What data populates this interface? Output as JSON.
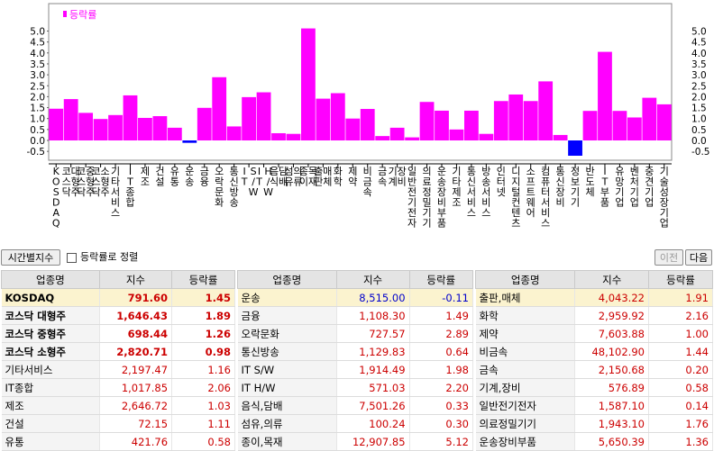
{
  "chart_data": {
    "type": "bar",
    "legend": "등락률",
    "legend_position": "top-left",
    "y_ticks": [
      "5.0",
      "4.5",
      "4.0",
      "3.5",
      "3.0",
      "2.5",
      "2.0",
      "1.5",
      "1.0",
      "0.5",
      "0.0",
      "-0.5"
    ],
    "ylim": [
      -0.8,
      5.3
    ],
    "categories": [
      "KOSDAQ",
      "코스닥 대형주",
      "코스닥 중형주",
      "코스닥 소형주",
      "기타서비스",
      "IT종합",
      "제조",
      "건설",
      "유통",
      "운송",
      "금융",
      "오락문화",
      "통신방송",
      "IT S/W",
      "IT H/W",
      "음식,담배",
      "섬유,의류",
      "종이,목재",
      "출판,매체",
      "화학",
      "제약",
      "비금속",
      "금속",
      "기계,장비",
      "일반전기전자",
      "의료정밀기기",
      "운송장비부품",
      "기타제조",
      "통신서비스",
      "방송서비스",
      "인터넷",
      "디지털컨텐츠",
      "소프트웨어",
      "컴퓨터서비스",
      "통신장비",
      "정보기기",
      "반도체",
      "IT부품",
      "유망기업",
      "벤처기업",
      "중견기업",
      "기술성장기업"
    ],
    "values": [
      1.45,
      1.89,
      1.26,
      0.98,
      1.16,
      2.06,
      1.03,
      1.11,
      0.58,
      -0.11,
      1.49,
      2.89,
      0.64,
      1.98,
      2.2,
      0.33,
      0.3,
      5.12,
      1.91,
      2.16,
      1.0,
      1.44,
      0.2,
      0.58,
      0.14,
      1.76,
      1.36,
      0.5,
      1.36,
      0.3,
      1.8,
      2.1,
      1.8,
      2.7,
      0.25,
      -0.7,
      1.35,
      4.05,
      1.35,
      1.05,
      1.95,
      1.65
    ],
    "colors": {
      "positive": "#ff00ff",
      "negative": "#0000ff"
    }
  },
  "toolbar": {
    "period_label": "시간별지수",
    "sort_label": "등락률로 정렬",
    "prev_label": "이전",
    "next_label": "다음"
  },
  "table": {
    "headers": [
      "업종명",
      "지수",
      "등락률"
    ],
    "col1": [
      {
        "name": "KOSDAQ",
        "index": "791.60",
        "rate": "1.45",
        "hl": true,
        "bold": true,
        "neg": false
      },
      {
        "name": "코스닥 대형주",
        "index": "1,646.43",
        "rate": "1.89",
        "hl": false,
        "bold": true,
        "neg": false
      },
      {
        "name": "코스닥 중형주",
        "index": "698.44",
        "rate": "1.26",
        "hl": false,
        "bold": true,
        "neg": false
      },
      {
        "name": "코스닥 소형주",
        "index": "2,820.71",
        "rate": "0.98",
        "hl": false,
        "bold": true,
        "neg": false
      },
      {
        "name": "기타서비스",
        "index": "2,197.47",
        "rate": "1.16",
        "hl": false,
        "bold": false,
        "neg": false
      },
      {
        "name": "IT종합",
        "index": "1,017.85",
        "rate": "2.06",
        "hl": false,
        "bold": false,
        "neg": false
      },
      {
        "name": "제조",
        "index": "2,646.72",
        "rate": "1.03",
        "hl": false,
        "bold": false,
        "neg": false
      },
      {
        "name": "건설",
        "index": "72.15",
        "rate": "1.11",
        "hl": false,
        "bold": false,
        "neg": false
      },
      {
        "name": "유통",
        "index": "421.76",
        "rate": "0.58",
        "hl": false,
        "bold": false,
        "neg": false
      }
    ],
    "col2": [
      {
        "name": "운송",
        "index": "8,515.00",
        "rate": "-0.11",
        "hl": true,
        "bold": false,
        "neg": true
      },
      {
        "name": "금융",
        "index": "1,108.30",
        "rate": "1.49",
        "hl": false,
        "bold": false,
        "neg": false
      },
      {
        "name": "오락문화",
        "index": "727.57",
        "rate": "2.89",
        "hl": false,
        "bold": false,
        "neg": false
      },
      {
        "name": "통신방송",
        "index": "1,129.83",
        "rate": "0.64",
        "hl": false,
        "bold": false,
        "neg": false
      },
      {
        "name": "IT S/W",
        "index": "1,914.49",
        "rate": "1.98",
        "hl": false,
        "bold": false,
        "neg": false
      },
      {
        "name": "IT H/W",
        "index": "571.03",
        "rate": "2.20",
        "hl": false,
        "bold": false,
        "neg": false
      },
      {
        "name": "음식,담배",
        "index": "7,501.26",
        "rate": "0.33",
        "hl": false,
        "bold": false,
        "neg": false
      },
      {
        "name": "섬유,의류",
        "index": "100.24",
        "rate": "0.30",
        "hl": false,
        "bold": false,
        "neg": false
      },
      {
        "name": "종이,목재",
        "index": "12,907.85",
        "rate": "5.12",
        "hl": false,
        "bold": false,
        "neg": false
      }
    ],
    "col3": [
      {
        "name": "출판,매체",
        "index": "4,043.22",
        "rate": "1.91",
        "hl": true,
        "bold": false,
        "neg": false
      },
      {
        "name": "화학",
        "index": "2,959.92",
        "rate": "2.16",
        "hl": false,
        "bold": false,
        "neg": false
      },
      {
        "name": "제약",
        "index": "7,603.88",
        "rate": "1.00",
        "hl": false,
        "bold": false,
        "neg": false
      },
      {
        "name": "비금속",
        "index": "48,102.90",
        "rate": "1.44",
        "hl": false,
        "bold": false,
        "neg": false
      },
      {
        "name": "금속",
        "index": "2,150.68",
        "rate": "0.20",
        "hl": false,
        "bold": false,
        "neg": false
      },
      {
        "name": "기계,장비",
        "index": "576.89",
        "rate": "0.58",
        "hl": false,
        "bold": false,
        "neg": false
      },
      {
        "name": "일반전기전자",
        "index": "1,587.10",
        "rate": "0.14",
        "hl": false,
        "bold": false,
        "neg": false
      },
      {
        "name": "의료정밀기기",
        "index": "1,943.10",
        "rate": "1.76",
        "hl": false,
        "bold": false,
        "neg": false
      },
      {
        "name": "운송장비부품",
        "index": "5,650.39",
        "rate": "1.36",
        "hl": false,
        "bold": false,
        "neg": false
      }
    ]
  }
}
